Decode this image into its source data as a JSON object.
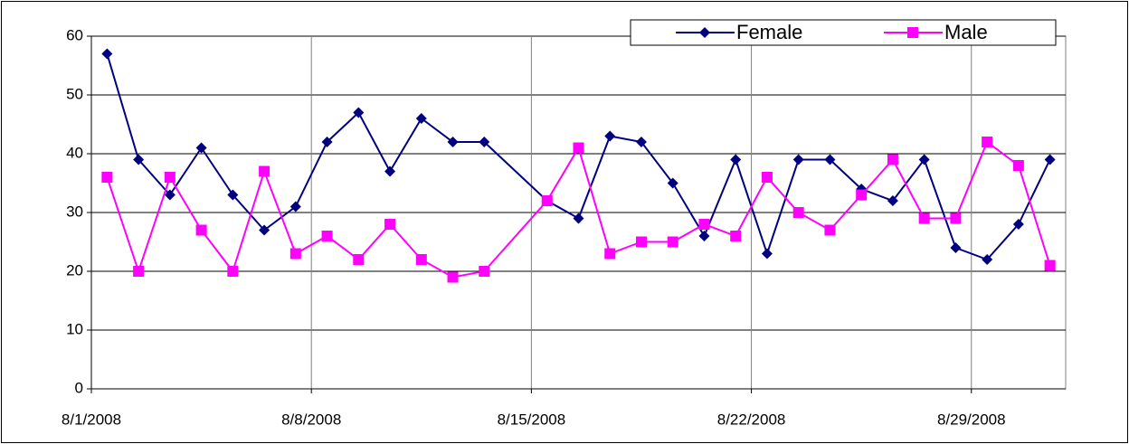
{
  "chart_data": {
    "type": "line",
    "x": [
      "8/1/2008",
      "8/2/2008",
      "8/3/2008",
      "8/4/2008",
      "8/5/2008",
      "8/6/2008",
      "8/7/2008",
      "8/8/2008",
      "8/9/2008",
      "8/10/2008",
      "8/11/2008",
      "8/12/2008",
      "8/13/2008",
      "8/15/2008",
      "8/16/2008",
      "8/17/2008",
      "8/18/2008",
      "8/19/2008",
      "8/20/2008",
      "8/21/2008",
      "8/22/2008",
      "8/23/2008",
      "8/24/2008",
      "8/25/2008",
      "8/26/2008",
      "8/27/2008",
      "8/28/2008",
      "8/29/2008",
      "8/30/2008",
      "8/31/2008"
    ],
    "series": [
      {
        "name": "Female",
        "color": "#000080",
        "marker": "diamond",
        "values": [
          57,
          39,
          33,
          41,
          33,
          27,
          31,
          42,
          47,
          37,
          46,
          42,
          42,
          32,
          29,
          43,
          42,
          35,
          26,
          39,
          23,
          39,
          39,
          34,
          32,
          39,
          24,
          22,
          28,
          39
        ]
      },
      {
        "name": "Male",
        "color": "#ff00ff",
        "marker": "square",
        "values": [
          36,
          20,
          36,
          27,
          20,
          37,
          23,
          26,
          22,
          28,
          22,
          19,
          20,
          32,
          41,
          23,
          25,
          25,
          28,
          26,
          36,
          30,
          27,
          33,
          39,
          29,
          29,
          42,
          38,
          21
        ]
      }
    ],
    "xlim": [
      "8/1/2008",
      "9/1/2008"
    ],
    "xticks": [
      "8/1/2008",
      "8/8/2008",
      "8/15/2008",
      "8/22/2008",
      "8/29/2008"
    ],
    "ylim": [
      0,
      60
    ],
    "yticks": [
      0,
      10,
      20,
      30,
      40,
      50,
      60
    ],
    "grid": true,
    "legend": "upper right"
  }
}
